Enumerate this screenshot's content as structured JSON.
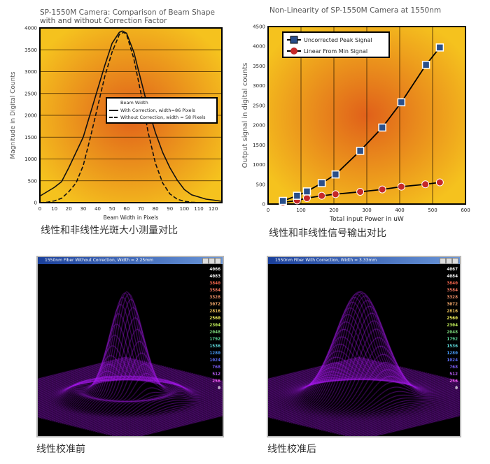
{
  "chart_data": [
    {
      "type": "line",
      "title": "SP-1550M Camera: Comparison of Beam Shape with and without Correction Factor",
      "title_lines": [
        "SP-1550M Camera: Comparison of Beam Shape",
        "with and without Correction Factor"
      ],
      "xlabel": "Beam Width in Pixels",
      "ylabel": "Magnitude in Digital Counts",
      "xlim": [
        0,
        126
      ],
      "ylim": [
        0,
        4000
      ],
      "xticks": [
        0,
        10,
        20,
        30,
        40,
        50,
        60,
        70,
        80,
        90,
        100,
        110,
        120
      ],
      "yticks": [
        0,
        500,
        1000,
        1500,
        2000,
        2500,
        3000,
        3500,
        4000
      ],
      "grid": "horizontal",
      "legend_placement": "center-right",
      "legend_title": "Beam Width",
      "series": [
        {
          "name": "With Correction, width=86 Pixels",
          "style": "solid",
          "x": [
            0,
            5,
            10,
            15,
            20,
            25,
            30,
            35,
            40,
            45,
            50,
            55,
            57,
            60,
            65,
            70,
            75,
            80,
            85,
            90,
            95,
            100,
            105,
            110,
            115,
            120,
            126
          ],
          "y": [
            150,
            250,
            350,
            480,
            800,
            1150,
            1500,
            2050,
            2600,
            3150,
            3650,
            3900,
            3930,
            3880,
            3450,
            2800,
            2150,
            1600,
            1150,
            800,
            520,
            300,
            180,
            130,
            80,
            60,
            30
          ]
        },
        {
          "name": "Without Correction, width = 58 Pixels",
          "style": "dashed",
          "x": [
            0,
            5,
            10,
            15,
            20,
            25,
            30,
            35,
            40,
            45,
            50,
            55,
            58,
            60,
            65,
            70,
            75,
            80,
            85,
            90,
            95,
            100,
            105,
            110,
            126
          ],
          "y": [
            0,
            10,
            40,
            100,
            250,
            450,
            850,
            1500,
            2200,
            2900,
            3450,
            3850,
            3900,
            3850,
            3300,
            2500,
            1600,
            900,
            450,
            200,
            80,
            30,
            10,
            0,
            0
          ]
        }
      ]
    },
    {
      "type": "line",
      "title": "Non-Linearity of SP-1550M Camera at 1550nm",
      "xlabel": "Total input Power in uW",
      "ylabel": "Output signal in digital counts",
      "xlim": [
        0,
        600
      ],
      "ylim": [
        0,
        4500
      ],
      "xticks": [
        0,
        100,
        200,
        300,
        400,
        500,
        600
      ],
      "yticks": [
        0,
        500,
        1000,
        1500,
        2000,
        2500,
        3000,
        3500,
        4000,
        4500
      ],
      "grid": "vertical",
      "legend_placement": "top-left",
      "series": [
        {
          "name": "Uncorrected Peak Signal",
          "marker": "square",
          "color": "#2a4f8a",
          "x": [
            45,
            88,
            118,
            163,
            205,
            280,
            347,
            405,
            480,
            522
          ],
          "y": [
            80,
            210,
            320,
            530,
            750,
            1350,
            1940,
            2580,
            3530,
            3970
          ]
        },
        {
          "name": "Linear From Min Signal",
          "marker": "circle",
          "color": "#c62828",
          "x": [
            45,
            88,
            118,
            163,
            205,
            280,
            347,
            405,
            478,
            522
          ],
          "y": [
            40,
            90,
            150,
            210,
            250,
            310,
            370,
            440,
            500,
            550
          ]
        }
      ]
    }
  ],
  "captions": {
    "chart1": "线性和非线性光斑大小测量对比",
    "chart2": "线性和非线性信号输出对比",
    "plot3d_left": "线性校准前",
    "plot3d_right": "线性校准后"
  },
  "windows": {
    "left": {
      "title": "1550nm Fiber Without Correction, Width = 2.25mm",
      "scale": [
        "4066",
        "4083",
        "3840",
        "3584",
        "3328",
        "3072",
        "2816",
        "2560",
        "2304",
        "2048",
        "1792",
        "1536",
        "1280",
        "1024",
        "768",
        "512",
        "256",
        "0"
      ]
    },
    "right": {
      "title": "1550nm Fiber With Correction, Width = 3.33mm",
      "scale": [
        "4067",
        "4084",
        "3840",
        "3584",
        "3328",
        "3072",
        "2816",
        "2560",
        "2304",
        "2048",
        "1792",
        "1536",
        "1280",
        "1024",
        "768",
        "512",
        "256",
        "0"
      ]
    }
  },
  "scale_colors": [
    "#ffffff",
    "#ffffff",
    "#ff6a50",
    "#ff7a60",
    "#ff9a70",
    "#ffb070",
    "#ffd060",
    "#ffff60",
    "#d0ff60",
    "#80e080",
    "#60e0a0",
    "#60e0e0",
    "#4aa0ff",
    "#6070ff",
    "#8060ff",
    "#c060ff",
    "#ff60ff",
    "#ffffff"
  ]
}
